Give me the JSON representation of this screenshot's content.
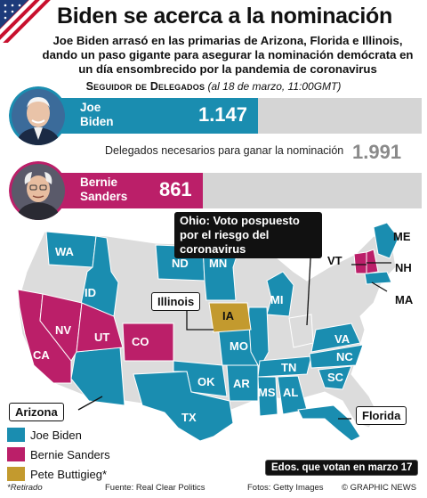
{
  "title": "Biden se acerca a la nominación",
  "subtitle": "Joe Biden arrasó en las primarias de Arizona, Florida e Illinois, dando un paso gigante para asegurar la nominación demócrata en un día ensombrecido por la pandemia de coronavirus",
  "tracker": {
    "label": "Seguidor de Delegados",
    "as_of": "(al 18 de marzo, 11:00GMT)",
    "needed_label": "Delegados necesarios para ganar la nominación",
    "needed_value_text": "1.991"
  },
  "colors": {
    "biden": "#1a8db0",
    "sanders": "#bb1f69",
    "buttigieg": "#c39a2e",
    "neutral": "#d5d5d5",
    "state_other": "#dcdcdc"
  },
  "chart_data": [
    {
      "type": "bar",
      "title": "Seguidor de Delegados",
      "subtitle": "(al 18 de marzo, 11:00GMT)",
      "categories": [
        "Joe Biden",
        "Bernie Sanders"
      ],
      "values": [
        1147,
        861
      ],
      "value_labels": [
        "1.147",
        "861"
      ],
      "target": 1991,
      "xlim": [
        0,
        1991
      ]
    },
    {
      "type": "map",
      "title": "",
      "states": [
        {
          "abbr": "WA",
          "winner": "biden"
        },
        {
          "abbr": "ID",
          "winner": "biden"
        },
        {
          "abbr": "ND",
          "winner": "biden"
        },
        {
          "abbr": "MN",
          "winner": "biden"
        },
        {
          "abbr": "MI",
          "winner": "biden"
        },
        {
          "abbr": "MO",
          "winner": "biden"
        },
        {
          "abbr": "OK",
          "winner": "biden"
        },
        {
          "abbr": "AR",
          "winner": "biden"
        },
        {
          "abbr": "TX",
          "winner": "biden"
        },
        {
          "abbr": "TN",
          "winner": "biden"
        },
        {
          "abbr": "MS",
          "winner": "biden"
        },
        {
          "abbr": "AL",
          "winner": "biden"
        },
        {
          "abbr": "VA",
          "winner": "biden"
        },
        {
          "abbr": "NC",
          "winner": "biden"
        },
        {
          "abbr": "SC",
          "winner": "biden"
        },
        {
          "abbr": "ME",
          "winner": "biden"
        },
        {
          "abbr": "MA",
          "winner": "biden"
        },
        {
          "abbr": "CA",
          "winner": "sanders"
        },
        {
          "abbr": "NV",
          "winner": "sanders"
        },
        {
          "abbr": "UT",
          "winner": "sanders"
        },
        {
          "abbr": "CO",
          "winner": "sanders"
        },
        {
          "abbr": "VT",
          "winner": "sanders"
        },
        {
          "abbr": "NH",
          "winner": "sanders"
        },
        {
          "abbr": "IA",
          "winner": "buttigieg"
        },
        {
          "abbr": "AZ",
          "winner": "biden"
        },
        {
          "abbr": "IL",
          "winner": "biden"
        },
        {
          "abbr": "FL",
          "winner": "biden"
        }
      ]
    }
  ],
  "candidates": [
    {
      "first": "Joe",
      "last": "Biden",
      "value_text": "1.147"
    },
    {
      "first": "Bernie",
      "last": "Sanders",
      "value_text": "861"
    }
  ],
  "callouts": {
    "ohio": "Ohio: Voto pospuesto por el riesgo del coronavirus",
    "illinois": "Illinois",
    "arizona": "Arizona",
    "florida": "Florida",
    "edos": "Edos. que votan en marzo 17"
  },
  "state_labels": {
    "WA": "WA",
    "ID": "ID",
    "ND": "ND",
    "MN": "MN",
    "MI": "MI",
    "IA": "IA",
    "NV": "NV",
    "UT": "UT",
    "CO": "CO",
    "CA": "CA",
    "MO": "MO",
    "OK": "OK",
    "AR": "AR",
    "TX": "TX",
    "TN": "TN",
    "MS": "MS",
    "AL": "AL",
    "VA": "VA",
    "NC": "NC",
    "SC": "SC",
    "ME": "ME",
    "VT": "VT",
    "NH": "NH",
    "MA": "MA"
  },
  "legend": [
    {
      "label": "Joe Biden",
      "color": "#1a8db0"
    },
    {
      "label": "Bernie Sanders",
      "color": "#bb1f69"
    },
    {
      "label": "Pete Buttigieg*",
      "color": "#c39a2e"
    }
  ],
  "footer": {
    "note": "*Retirado",
    "source": "Fuente: Real Clear Politics",
    "photos": "Fotos: Getty Images",
    "credit": "© GRAPHIC NEWS"
  }
}
